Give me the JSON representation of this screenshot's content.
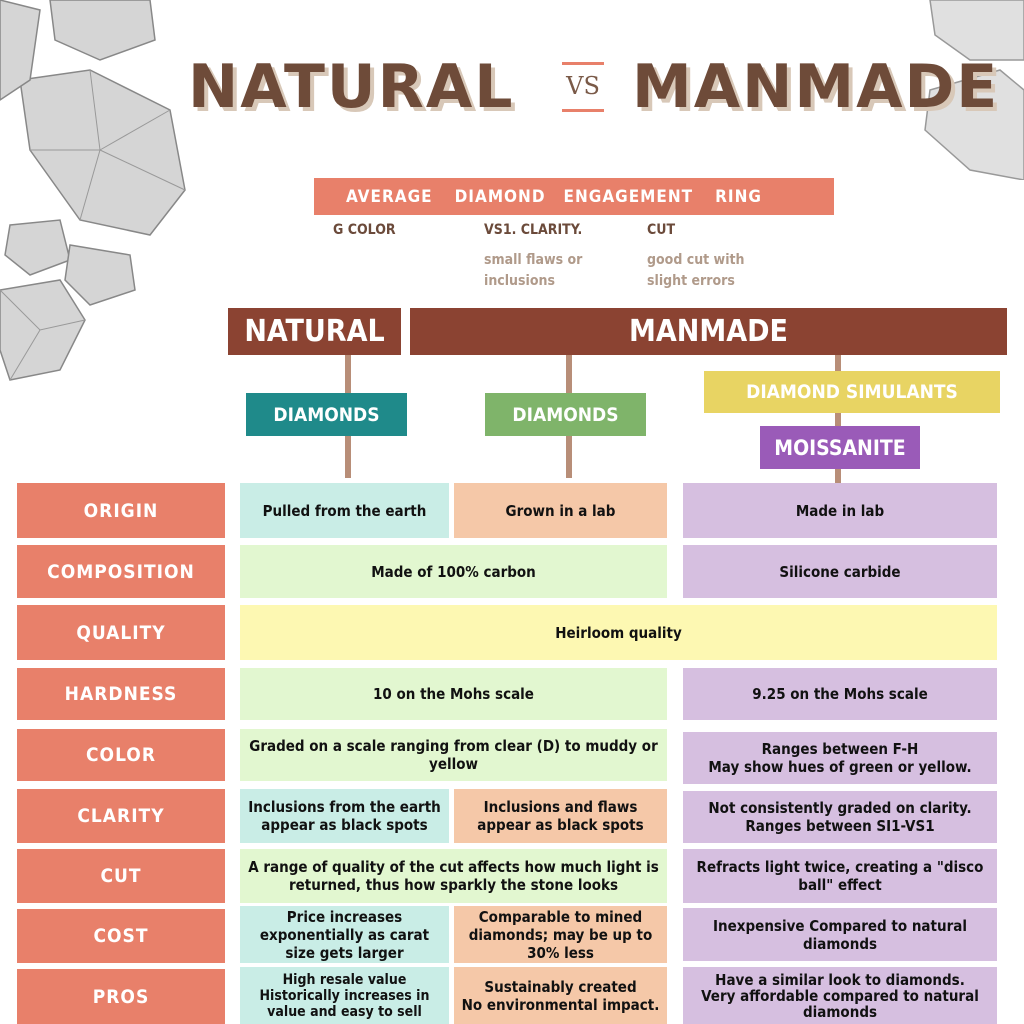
{
  "title": {
    "left": "NATURAL",
    "vs": "VS",
    "right": "MANMADE"
  },
  "average": {
    "heading": [
      "AVERAGE",
      "DIAMOND",
      "ENGAGEMENT",
      "RING"
    ],
    "specs": [
      {
        "label": "G COLOR",
        "note": ""
      },
      {
        "label": "VS1. CLARITY.",
        "note": "small flaws or inclusions"
      },
      {
        "label": "CUT",
        "note": "good cut with slight errors"
      }
    ]
  },
  "categories": {
    "natural": "NATURAL",
    "manmade": "MANMADE"
  },
  "types": {
    "natural_diamonds": "DIAMONDS",
    "lab_diamonds": "DIAMONDS",
    "simulants": "DIAMOND SIMULANTS",
    "moissanite": "MOISSANITE"
  },
  "colors": {
    "accent": "#e8806a",
    "brown": "#8b4332",
    "teal": "#1f8a8a",
    "green": "#7fb46a",
    "yellow": "#e8d463",
    "purple": "#9a5bb8"
  },
  "rows": [
    {
      "label": "ORIGIN",
      "natural": "Pulled from the earth",
      "lab": "Grown in a lab",
      "moissanite": "Made in lab"
    },
    {
      "label": "COMPOSITION",
      "diamonds": "Made of 100% carbon",
      "moissanite": "Silicone carbide"
    },
    {
      "label": "QUALITY",
      "all": "Heirloom quality"
    },
    {
      "label": "HARDNESS",
      "diamonds": "10 on the Mohs scale",
      "moissanite": "9.25 on the Mohs scale"
    },
    {
      "label": "COLOR",
      "diamonds": "Graded on a scale ranging from clear (D) to muddy or yellow",
      "moissanite": "Ranges between F-H\nMay show hues of green or yellow."
    },
    {
      "label": "CLARITY",
      "natural": "Inclusions from the earth appear as black spots",
      "lab": "Inclusions and flaws appear as black spots",
      "moissanite": "Not consistently graded on clarity. Ranges between SI1-VS1"
    },
    {
      "label": "CUT",
      "diamonds": "A range of quality of the cut affects how much light is returned, thus how sparkly the stone looks",
      "moissanite": "Refracts light twice, creating a \"disco ball\" effect"
    },
    {
      "label": "COST",
      "natural": "Price increases exponentially as carat size gets larger",
      "lab": "Comparable to mined diamonds; may be up to 30% less",
      "moissanite": "Inexpensive Compared to natural diamonds"
    },
    {
      "label": "PROS",
      "natural": "High resale value\nHistorically increases in value and easy to sell",
      "lab": "Sustainably created\nNo environmental impact.",
      "moissanite": "Have a similar look to diamonds.\nVery affordable compared to natural diamonds"
    }
  ]
}
